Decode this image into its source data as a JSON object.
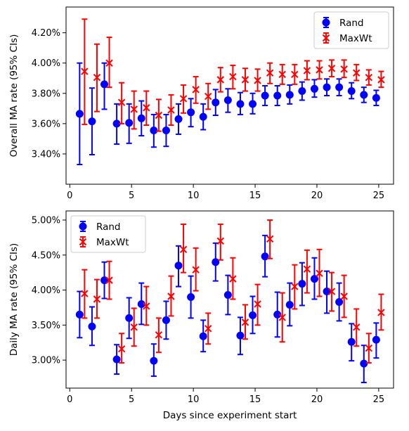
{
  "chart_data": [
    {
      "type": "scatter",
      "title": "",
      "xlabel": "",
      "ylabel": "Overall MA rate (95% CIs)",
      "xlim": [
        -0.3,
        26.2
      ],
      "ylim": [
        3.2,
        4.37
      ],
      "xticks": [
        0,
        5,
        10,
        15,
        20,
        25
      ],
      "xtick_labels": [
        "0",
        "5",
        "10",
        "15",
        "20",
        "25"
      ],
      "yticks": [
        3.4,
        3.6,
        3.8,
        4.0,
        4.2
      ],
      "ytick_labels": [
        "3.40%",
        "3.60%",
        "3.80%",
        "4.00%",
        "4.20%"
      ],
      "grid": false,
      "legend": "top-right",
      "series": [
        {
          "name": "Rand",
          "color": "#0000ff",
          "marker": "circle",
          "x": [
            0.8,
            1.8,
            2.8,
            3.8,
            4.8,
            5.8,
            6.8,
            7.8,
            8.8,
            9.8,
            10.8,
            11.8,
            12.8,
            13.8,
            14.8,
            15.8,
            16.8,
            17.8,
            18.8,
            19.8,
            20.8,
            21.8,
            22.8,
            23.8,
            24.8
          ],
          "y": [
            3.665,
            3.615,
            3.86,
            3.6,
            3.605,
            3.635,
            3.555,
            3.555,
            3.63,
            3.675,
            3.645,
            3.74,
            3.755,
            3.73,
            3.73,
            3.785,
            3.785,
            3.79,
            3.815,
            3.83,
            3.84,
            3.84,
            3.815,
            3.79,
            3.77
          ],
          "lower": [
            3.33,
            3.395,
            3.695,
            3.465,
            3.47,
            3.52,
            3.445,
            3.45,
            3.53,
            3.58,
            3.56,
            3.655,
            3.675,
            3.66,
            3.665,
            3.72,
            3.72,
            3.73,
            3.755,
            3.775,
            3.785,
            3.785,
            3.765,
            3.74,
            3.72
          ],
          "upper": [
            4.0,
            3.835,
            4.0,
            3.73,
            3.73,
            3.75,
            3.66,
            3.66,
            3.73,
            3.765,
            3.73,
            3.825,
            3.83,
            3.805,
            3.8,
            3.85,
            3.85,
            3.855,
            3.875,
            3.89,
            3.895,
            3.895,
            3.87,
            3.84,
            3.82
          ]
        },
        {
          "name": "MaxWt",
          "color": "#ff0000",
          "marker": "x",
          "x": [
            1.2,
            2.2,
            3.2,
            4.2,
            5.2,
            6.2,
            7.2,
            8.2,
            9.2,
            10.2,
            11.2,
            12.2,
            13.2,
            14.2,
            15.2,
            16.2,
            17.2,
            18.2,
            19.2,
            20.2,
            21.2,
            22.2,
            23.2,
            24.2,
            25.2
          ],
          "y": [
            3.945,
            3.905,
            4.0,
            3.74,
            3.695,
            3.705,
            3.655,
            3.69,
            3.765,
            3.825,
            3.78,
            3.89,
            3.91,
            3.89,
            3.885,
            3.935,
            3.925,
            3.925,
            3.95,
            3.955,
            3.965,
            3.96,
            3.935,
            3.905,
            3.89
          ],
          "lower": [
            3.595,
            3.68,
            3.84,
            3.6,
            3.565,
            3.59,
            3.55,
            3.59,
            3.67,
            3.735,
            3.695,
            3.81,
            3.83,
            3.815,
            3.815,
            3.865,
            3.86,
            3.86,
            3.89,
            3.895,
            3.91,
            3.905,
            3.885,
            3.855,
            3.84
          ],
          "upper": [
            4.29,
            4.125,
            4.17,
            3.87,
            3.815,
            3.815,
            3.76,
            3.79,
            3.855,
            3.91,
            3.865,
            3.97,
            3.985,
            3.965,
            3.96,
            4.0,
            3.99,
            3.99,
            4.015,
            4.015,
            4.02,
            4.02,
            3.99,
            3.955,
            3.945
          ]
        }
      ]
    },
    {
      "type": "scatter",
      "title": "",
      "xlabel": "Days since experiment start",
      "ylabel": "Daily MA rate (95% CIs)",
      "xlim": [
        -0.3,
        26.2
      ],
      "ylim": [
        2.6,
        5.13
      ],
      "xticks": [
        0,
        5,
        10,
        15,
        20,
        25
      ],
      "xtick_labels": [
        "0",
        "5",
        "10",
        "15",
        "20",
        "25"
      ],
      "yticks": [
        3.0,
        3.5,
        4.0,
        4.5,
        5.0
      ],
      "ytick_labels": [
        "3.00%",
        "3.50%",
        "4.00%",
        "4.50%",
        "5.00%"
      ],
      "grid": false,
      "legend": "top-left",
      "series": [
        {
          "name": "Rand",
          "color": "#0000ff",
          "marker": "circle",
          "x": [
            0.8,
            1.8,
            2.8,
            3.8,
            4.8,
            5.8,
            6.8,
            7.8,
            8.8,
            9.8,
            10.8,
            11.8,
            12.8,
            13.8,
            14.8,
            15.8,
            16.8,
            17.8,
            18.8,
            19.8,
            20.8,
            21.8,
            22.8,
            23.8,
            24.8
          ],
          "y": [
            3.65,
            3.48,
            4.14,
            3.01,
            3.6,
            3.8,
            2.99,
            3.57,
            4.35,
            3.9,
            3.34,
            4.4,
            3.93,
            3.35,
            3.64,
            4.48,
            3.65,
            3.79,
            4.09,
            4.16,
            3.98,
            3.83,
            3.26,
            2.95,
            3.29
          ],
          "lower": [
            3.32,
            3.21,
            3.88,
            2.8,
            3.31,
            3.51,
            2.77,
            3.3,
            4.05,
            3.6,
            3.12,
            4.13,
            3.65,
            3.08,
            3.38,
            4.19,
            3.33,
            3.49,
            3.78,
            3.87,
            3.67,
            3.56,
            2.99,
            2.68,
            3.03
          ],
          "upper": [
            3.98,
            3.76,
            4.4,
            3.22,
            3.89,
            4.1,
            3.23,
            3.84,
            4.63,
            4.2,
            3.57,
            4.67,
            4.21,
            3.61,
            3.91,
            4.78,
            3.97,
            4.1,
            4.39,
            4.46,
            4.27,
            4.1,
            3.52,
            3.21,
            3.53
          ]
        },
        {
          "name": "MaxWt",
          "color": "#ff0000",
          "marker": "x",
          "x": [
            1.2,
            2.2,
            3.2,
            4.2,
            5.2,
            6.2,
            7.2,
            8.2,
            9.2,
            10.2,
            11.2,
            12.2,
            13.2,
            14.2,
            15.2,
            16.2,
            17.2,
            18.2,
            19.2,
            20.2,
            21.2,
            22.2,
            23.2,
            24.2,
            25.2
          ],
          "y": [
            3.95,
            3.87,
            4.14,
            3.16,
            3.47,
            3.77,
            3.36,
            3.91,
            4.58,
            4.29,
            3.45,
            4.7,
            4.16,
            3.54,
            3.8,
            4.73,
            3.61,
            4.05,
            4.3,
            4.24,
            3.98,
            3.91,
            3.47,
            3.17,
            3.68
          ],
          "lower": [
            3.6,
            3.6,
            3.87,
            2.96,
            3.2,
            3.5,
            3.11,
            3.63,
            4.25,
            3.99,
            3.23,
            4.43,
            3.87,
            3.3,
            3.5,
            4.45,
            3.26,
            3.73,
            3.96,
            3.91,
            3.7,
            3.61,
            3.2,
            2.96,
            3.43
          ],
          "upper": [
            4.29,
            4.15,
            4.41,
            3.38,
            3.74,
            4.05,
            3.6,
            4.2,
            4.94,
            4.6,
            3.67,
            4.94,
            4.46,
            3.79,
            4.08,
            5.0,
            3.96,
            4.36,
            4.57,
            4.58,
            4.25,
            4.21,
            3.73,
            3.38,
            3.94
          ]
        }
      ]
    }
  ]
}
